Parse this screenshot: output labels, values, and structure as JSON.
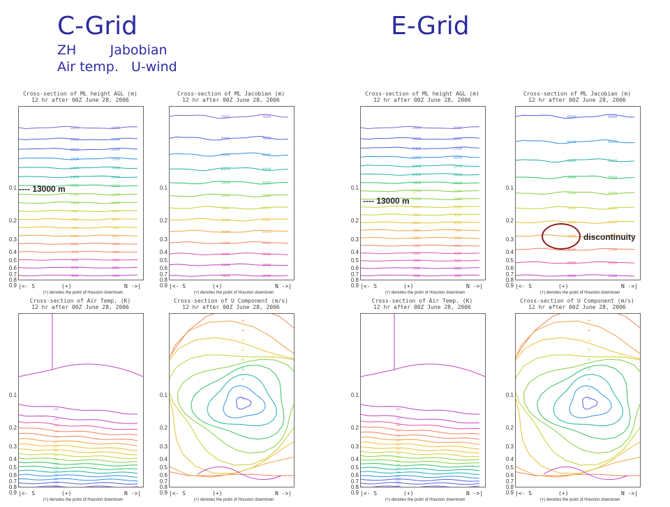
{
  "header": {
    "left_title": "C-Grid",
    "right_title": "E-Grid",
    "line1": "ZH        Jabobian",
    "line2": "Air temp.   U-wind"
  },
  "annotations": {
    "height_marker": "---- 13000 m",
    "discontinuity": "discontinuity"
  },
  "axis": {
    "y_ticks": [
      "0.1",
      "0.2",
      "0.3",
      "0.4",
      "0.5",
      "0.6",
      "0.7",
      "0.8",
      "0.9"
    ],
    "x_left": "|<- S",
    "x_mid": "(+)",
    "x_right": "N ->|",
    "note": "(+) denotes the point of Houston downtown"
  },
  "colors": {
    "title": "#2b2b9e",
    "contours": [
      "#c040c0",
      "#e34fa0",
      "#f08060",
      "#f0a040",
      "#e8c030",
      "#c8d030",
      "#80d040",
      "#30c060",
      "#20b0a0",
      "#3090e0",
      "#5060e0",
      "#8060d0"
    ],
    "ring": "#8b1a1a"
  },
  "chart_data": [
    {
      "id": "c-height",
      "type": "contour",
      "title": "Cross-section of ML height AGL (m)",
      "subtitle": "12 hr after 00Z June 28, 2006",
      "y_ticks": [
        0.1,
        0.2,
        0.3,
        0.4,
        0.5,
        0.6,
        0.7,
        0.8,
        0.9
      ],
      "levels": [
        1000,
        2000,
        3000,
        4000,
        5000,
        6000,
        7000,
        8000,
        9000,
        10000,
        11000,
        12000,
        13000,
        14000,
        15000,
        16000,
        17000,
        18000
      ]
    },
    {
      "id": "c-jacobian",
      "type": "contour",
      "title": "Cross-section of ML Jacobian (m)",
      "subtitle": "12 hr after 00Z June 28, 2006",
      "y_ticks": [
        0.1,
        0.2,
        0.3,
        0.4,
        0.5,
        0.6,
        0.7,
        0.8,
        0.9
      ],
      "levels": [
        15000,
        20000,
        25000,
        30000,
        35000,
        40000,
        45000,
        50000,
        55000,
        60000,
        65000,
        70000,
        75000
      ]
    },
    {
      "id": "e-height",
      "type": "contour",
      "title": "Cross-section of ML height AGL (m)",
      "subtitle": "12 hr after 00Z June 28, 2006",
      "y_ticks": [
        0.1,
        0.2,
        0.3,
        0.4,
        0.5,
        0.6,
        0.7,
        0.8,
        0.9
      ],
      "levels": [
        1000,
        2000,
        3000,
        4000,
        5000,
        6000,
        7000,
        8000,
        9000,
        10000,
        11000,
        12000,
        13000,
        14000,
        15000,
        16000,
        17000,
        18000,
        19000
      ]
    },
    {
      "id": "e-jacobian",
      "type": "contour",
      "title": "Cross-section of ML Jacobian (m)",
      "subtitle": "12 hr after 00Z June 28, 2006",
      "y_ticks": [
        0.1,
        0.2,
        0.3,
        0.4,
        0.5,
        0.6,
        0.7,
        0.8,
        0.9
      ],
      "levels": [
        15000,
        20000,
        25000,
        30000,
        35000,
        40000,
        45000,
        50000,
        55000,
        60000,
        65000
      ]
    },
    {
      "id": "c-temp",
      "type": "contour",
      "title": "Cross-section of Air Temp. (K)",
      "subtitle": "12 hr after 00Z June 28, 2006",
      "y_ticks": [
        0.1,
        0.2,
        0.3,
        0.4,
        0.5,
        0.6,
        0.7,
        0.8,
        0.9
      ],
      "levels": [
        215,
        220,
        225,
        230,
        235,
        240,
        245,
        250,
        255,
        260,
        265,
        270,
        275,
        280,
        285,
        290,
        295
      ]
    },
    {
      "id": "c-uwind",
      "type": "contour",
      "title": "Cross-section of U Component (m/s)",
      "subtitle": "12 hr after 00Z June 28, 2006",
      "y_ticks": [
        0.1,
        0.2,
        0.3,
        0.4,
        0.5,
        0.6,
        0.7,
        0.8,
        0.9
      ],
      "levels": [
        -5,
        0,
        5,
        10,
        15,
        20,
        25,
        30,
        35
      ]
    },
    {
      "id": "e-temp",
      "type": "contour",
      "title": "Cross-section of Air Temp. (K)",
      "subtitle": "12 hr after 00Z June 28, 2006",
      "y_ticks": [
        0.1,
        0.2,
        0.3,
        0.4,
        0.5,
        0.6,
        0.7,
        0.8,
        0.9
      ],
      "levels": [
        210,
        215,
        220,
        225,
        230,
        235,
        240,
        245,
        250,
        255,
        260,
        265,
        270,
        275,
        280,
        285,
        290,
        295
      ]
    },
    {
      "id": "e-uwind",
      "type": "contour",
      "title": "Cross-section of U Component (m/s)",
      "subtitle": "12 hr after 00Z June 28, 2006",
      "y_ticks": [
        0.1,
        0.2,
        0.3,
        0.4,
        0.5,
        0.6,
        0.7,
        0.8,
        0.9
      ],
      "levels": [
        -5,
        0,
        5,
        10,
        15,
        20,
        25,
        30,
        35
      ]
    }
  ]
}
